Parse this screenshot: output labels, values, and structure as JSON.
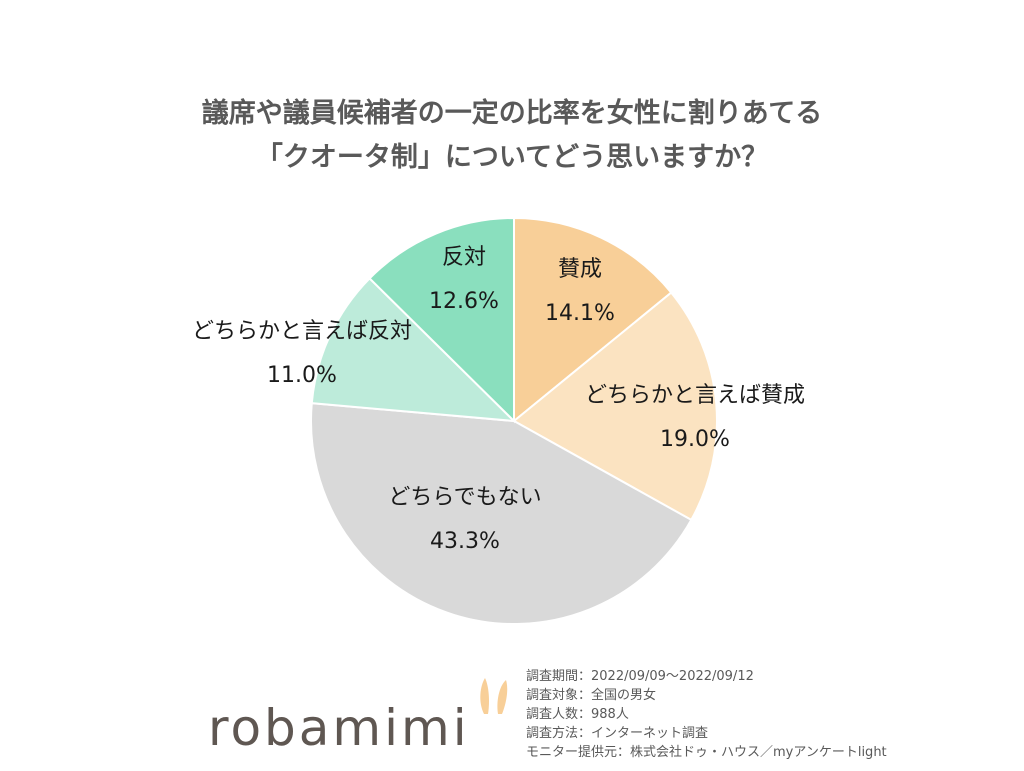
{
  "title": {
    "line1": "議席や議員候補者の一定の比率を女性に割りあてる",
    "line2": "「クオータ制」についてどう思いますか？"
  },
  "chart_data": {
    "type": "pie",
    "title": "議席や議員候補者の一定の比率を女性に割りあてる「クオータ制」についてどう思いますか？",
    "slices": [
      {
        "label": "賛成",
        "value": 14.1,
        "value_label": "14.1%",
        "color": "#F8CF98"
      },
      {
        "label": "どちらかと言えば賛成",
        "value": 19.0,
        "value_label": "19.0%",
        "color": "#FBE3C1"
      },
      {
        "label": "どちらでもない",
        "value": 43.3,
        "value_label": "43.3%",
        "color": "#D9D9D9"
      },
      {
        "label": "どちらかと言えば反対",
        "value": 11.0,
        "value_label": "11.0%",
        "color": "#BDEBDA"
      },
      {
        "label": "反対",
        "value": 12.6,
        "value_label": "12.6%",
        "color": "#8ADFBE"
      }
    ],
    "start": "12 o'clock",
    "direction": "clockwise"
  },
  "logo": {
    "text": "robamimi",
    "ear_color": "#F8CF98"
  },
  "notes": [
    "調査期間：2022/09/09～2022/09/12",
    "調査対象：全国の男女",
    "調査人数：988人",
    "調査方法：インターネット調査",
    "モニター提供元：株式会社ドゥ・ハウス／myアンケートlight"
  ]
}
